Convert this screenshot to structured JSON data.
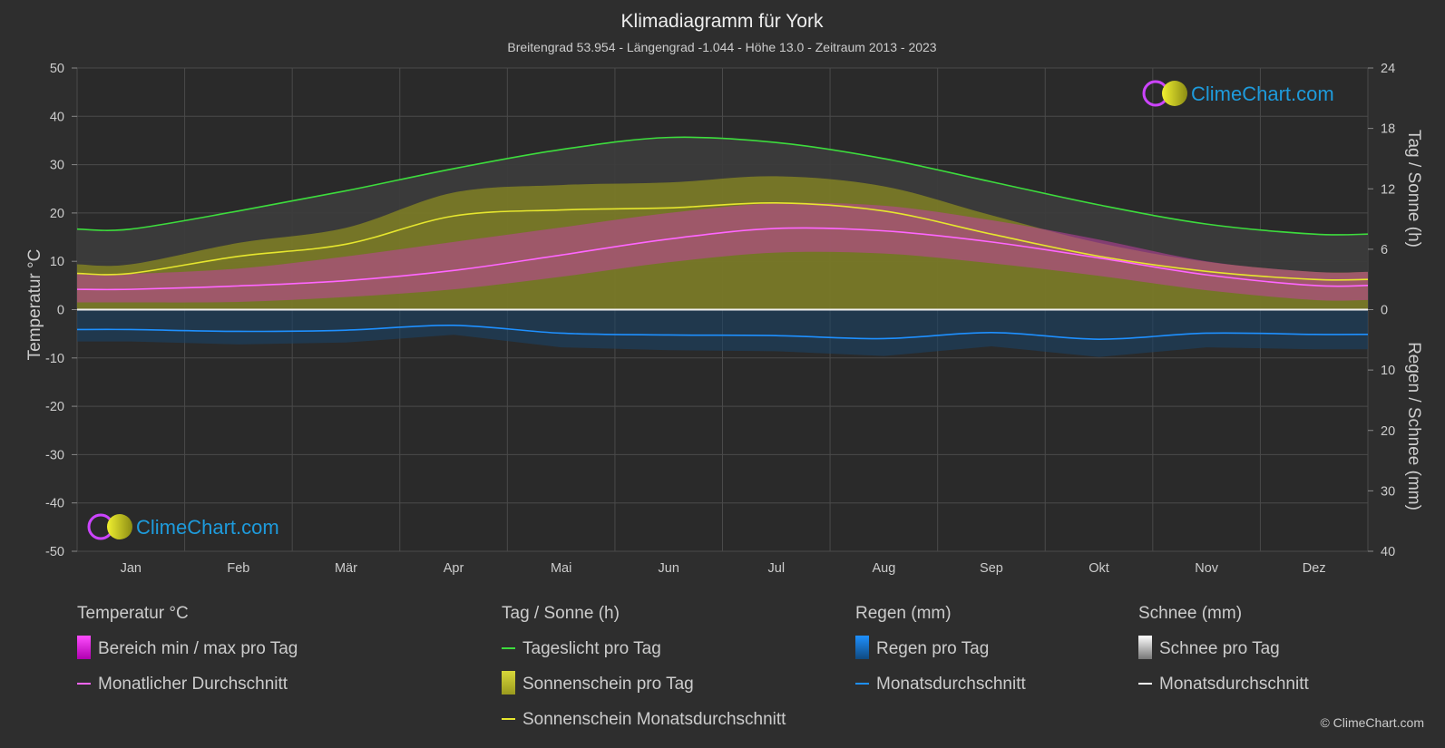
{
  "header": {
    "title": "Klimadiagramm für York",
    "subtitle": "Breitengrad 53.954 - Längengrad -1.044 - Höhe 13.0 - Zeitraum 2013 - 2023"
  },
  "axes": {
    "left_title": "Temperatur °C",
    "right_top_title": "Tag / Sonne (h)",
    "right_bottom_title": "Regen / Schnee (mm)",
    "left_ticks": [
      "50",
      "40",
      "30",
      "20",
      "10",
      "0",
      "-10",
      "-20",
      "-30",
      "-40",
      "-50"
    ],
    "right_top_ticks": [
      "24",
      "18",
      "12",
      "6",
      "0"
    ],
    "right_bottom_ticks": [
      "10",
      "20",
      "30",
      "40"
    ]
  },
  "brand": {
    "text": "ClimeChart.com",
    "copyright": "© ClimeChart.com"
  },
  "legend": {
    "temp_head": "Temperatur °C",
    "temp_range": "Bereich min / max pro Tag",
    "temp_avg": "Monatlicher Durchschnitt",
    "sun_head": "Tag / Sonne (h)",
    "daylight": "Tageslicht pro Tag",
    "sunshine_day": "Sonnenschein pro Tag",
    "sunshine_avg": "Sonnenschein Monatsdurchschnitt",
    "rain_head": "Regen (mm)",
    "rain_day": "Regen pro Tag",
    "rain_avg": "Monatsdurchschnitt",
    "snow_head": "Schnee (mm)",
    "snow_day": "Schnee pro Tag",
    "snow_avg": "Monatsdurchschnitt"
  },
  "colors": {
    "daylight": "#3ddc3d",
    "sunshine": "#e6e62e",
    "temp_avg": "#ff66ff",
    "temp_range": "#d633d6",
    "rain": "#1e90ff",
    "snow": "#ffffff",
    "brand": "#1e9bdc"
  },
  "chart_data": {
    "type": "line",
    "months": [
      "Jan",
      "Feb",
      "Mär",
      "Apr",
      "Mai",
      "Jun",
      "Jul",
      "Aug",
      "Sep",
      "Okt",
      "Nov",
      "Dez"
    ],
    "temp_ylim": [
      -50,
      50
    ],
    "sun_ylim": [
      0,
      24
    ],
    "precip_ylim": [
      0,
      40
    ],
    "grid": true,
    "series": [
      {
        "name": "Tageslicht pro Tag",
        "axis": "sun_h",
        "values": [
          8.0,
          9.8,
          11.8,
          14.0,
          15.9,
          17.1,
          16.6,
          15.0,
          12.7,
          10.4,
          8.5,
          7.5
        ]
      },
      {
        "name": "Sonnenschein Monatsdurchschnitt",
        "axis": "sun_h",
        "values": [
          3.6,
          5.3,
          6.5,
          9.3,
          9.9,
          10.1,
          10.6,
          9.8,
          7.5,
          5.3,
          3.8,
          3.0
        ]
      },
      {
        "name": "Monatlicher Durchschnitt",
        "axis": "temp_c",
        "values": [
          4.2,
          4.9,
          6.0,
          8.1,
          11.3,
          14.6,
          16.8,
          16.3,
          14.0,
          10.7,
          7.2,
          5.0
        ]
      },
      {
        "name": "Temperatur max",
        "axis": "temp_c",
        "values": [
          7.4,
          8.5,
          11.0,
          14.0,
          17.0,
          20.0,
          22.0,
          21.5,
          18.5,
          14.5,
          10.0,
          7.8
        ]
      },
      {
        "name": "Temperatur min",
        "axis": "temp_c",
        "values": [
          1.5,
          1.6,
          2.6,
          4.2,
          6.8,
          9.8,
          11.8,
          11.6,
          9.6,
          7.0,
          4.0,
          2.0
        ]
      },
      {
        "name": "Regen Monatsdurchschnitt",
        "axis": "precip_mm",
        "values": [
          3.3,
          3.6,
          3.4,
          2.6,
          3.9,
          4.2,
          4.3,
          4.8,
          3.8,
          4.9,
          3.9,
          4.1
        ]
      },
      {
        "name": "Schnee Monatsdurchschnitt",
        "axis": "precip_mm",
        "values": [
          0.3,
          0.3,
          0.2,
          0.0,
          0.0,
          0.0,
          0.0,
          0.0,
          0.0,
          0.0,
          0.1,
          0.2
        ]
      }
    ]
  }
}
